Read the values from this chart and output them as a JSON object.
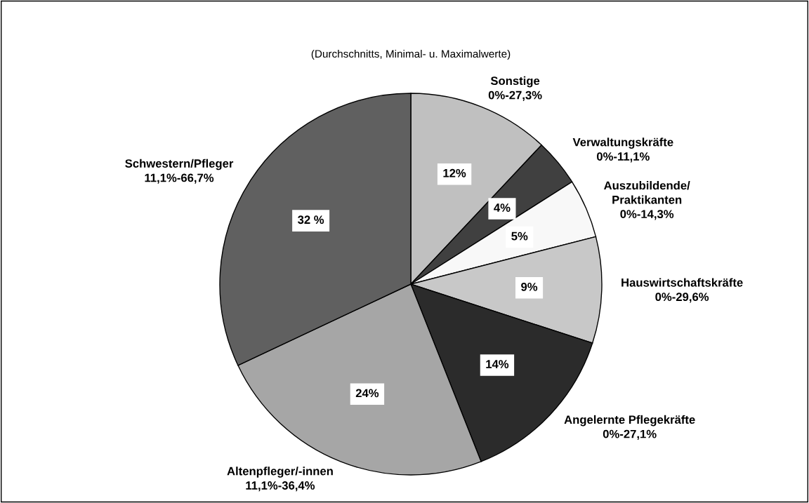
{
  "chart_data": {
    "type": "pie",
    "title": "(Durchschnitts, Minimal- u. Maximalwerte)",
    "categories": [
      "Sonstige\n0%-27,3%",
      "Verwaltungskräfte\n0%-11,1%",
      "Auszubildende/\nPraktikanten\n0%-14,3%",
      "Hauswirtschaftskräfte\n0%-29,6%",
      "Angelernte Pflegekräfte\n0%-27,1%",
      "Altenpfleger/-innen\n11,1%-36,4%",
      "Schwestern/Pfleger\n11,1%-66,7%"
    ],
    "values": [
      12,
      4,
      5,
      9,
      14,
      24,
      32
    ],
    "colors": [
      "#c0c0c0",
      "#404040",
      "#f8f8f8",
      "#c8c8c8",
      "#2b2b2b",
      "#a6a6a6",
      "#606060"
    ],
    "value_labels": [
      "12%",
      "4%",
      "5%",
      "9%",
      "14%",
      "24%",
      "32 %"
    ],
    "legend": false
  }
}
